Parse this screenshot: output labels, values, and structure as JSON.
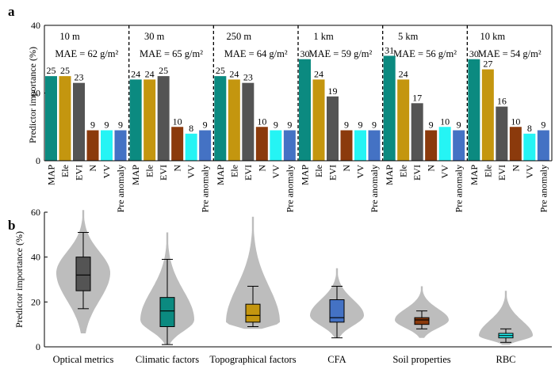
{
  "chart_data": [
    {
      "panel": "a",
      "type": "bar",
      "ylabel": "Predictor importance (%)",
      "ylim": [
        0,
        40
      ],
      "yticks": [
        "0",
        "20",
        "40"
      ],
      "categories": [
        "MAP",
        "Ele",
        "EVI",
        "N",
        "VV",
        "Pre anomaly"
      ],
      "colors": [
        "#0b8a80",
        "#c4960f",
        "#545454",
        "#8b3a0c",
        "#25f4f4",
        "#4472c4"
      ],
      "groups": [
        {
          "name": "10 m",
          "mae": "MAE = 62 g/m²",
          "values": [
            25,
            25,
            23,
            9,
            9,
            9
          ]
        },
        {
          "name": "30 m",
          "mae": "MAE = 65 g/m²",
          "values": [
            24,
            24,
            25,
            10,
            8,
            9
          ]
        },
        {
          "name": "250 m",
          "mae": "MAE = 64 g/m²",
          "values": [
            25,
            24,
            23,
            10,
            9,
            9
          ]
        },
        {
          "name": "1 km",
          "mae": "MAE = 59 g/m²",
          "values": [
            30,
            24,
            19,
            9,
            9,
            9
          ]
        },
        {
          "name": "5 km",
          "mae": "MAE = 56 g/m²",
          "values": [
            31,
            24,
            17,
            9,
            10,
            9
          ]
        },
        {
          "name": "10 km",
          "mae": "MAE = 54 g/m²",
          "values": [
            30,
            27,
            16,
            10,
            8,
            9
          ]
        }
      ]
    },
    {
      "panel": "b",
      "type": "violin",
      "ylabel": "Predictor importance (%)",
      "ylim": [
        0,
        60
      ],
      "yticks": [
        "0",
        "20",
        "40",
        "60"
      ],
      "series": [
        {
          "name": "Optical metrics",
          "color": "#545454",
          "violin_range": [
            6,
            61
          ],
          "whisker_low": 17,
          "q1": 25,
          "median": 32,
          "q3": 40,
          "whisker_high": 51,
          "density_peak": 33
        },
        {
          "name": "Climatic factors",
          "color": "#0b8a80",
          "violin_range": [
            1,
            51
          ],
          "whisker_low": 1,
          "q1": 9,
          "median": 16,
          "q3": 22,
          "whisker_high": 39,
          "density_peak": 12
        },
        {
          "name": "Topographical factors",
          "color": "#c4960f",
          "violin_range": [
            8,
            58
          ],
          "whisker_low": 9,
          "q1": 11,
          "median": 14,
          "q3": 19,
          "whisker_high": 27,
          "density_peak": 11
        },
        {
          "name": "CFA",
          "color": "#4472c4",
          "violin_range": [
            4,
            35
          ],
          "whisker_low": 4,
          "q1": 11,
          "median": 13,
          "q3": 21,
          "whisker_high": 27,
          "density_peak": 14
        },
        {
          "name": "Soil properties",
          "color": "#8b3a0c",
          "violin_range": [
            4,
            27
          ],
          "whisker_low": 8,
          "q1": 10,
          "median": 12,
          "q3": 13,
          "whisker_high": 16,
          "density_peak": 12
        },
        {
          "name": "RBC",
          "color": "#25f4f4",
          "violin_range": [
            1,
            25
          ],
          "whisker_low": 2,
          "q1": 4,
          "median": 5,
          "q3": 6,
          "whisker_high": 8,
          "density_peak": 5
        }
      ]
    }
  ]
}
